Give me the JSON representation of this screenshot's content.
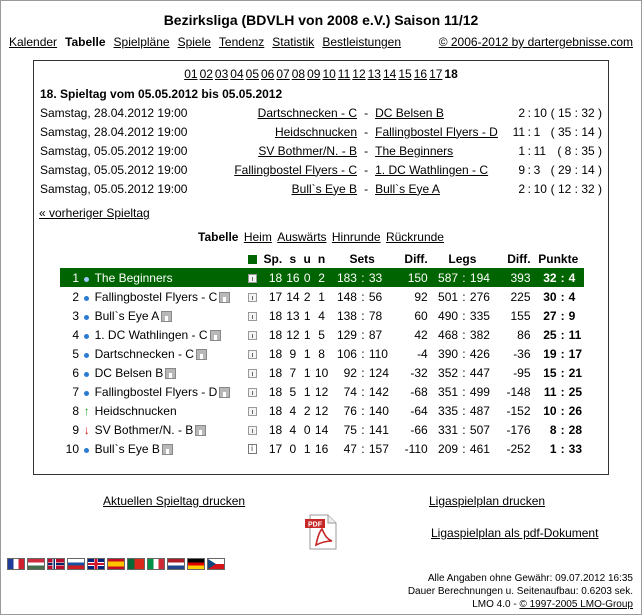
{
  "title": "Bezirksliga (BDVLH von 2008 e.V.) Saison 11/12",
  "nav": {
    "items": [
      "Kalender",
      "Tabelle",
      "Spielpläne",
      "Spiele",
      "Tendenz",
      "Statistik",
      "Bestleistungen"
    ],
    "current": "Tabelle",
    "copyright": "© 2006-2012 by dartergebnisse.com"
  },
  "matchdays": {
    "items": [
      "01",
      "02",
      "03",
      "04",
      "05",
      "06",
      "07",
      "08",
      "09",
      "10",
      "11",
      "12",
      "13",
      "14",
      "15",
      "16",
      "17",
      "18"
    ],
    "current": "18"
  },
  "spieltag_header": "18. Spieltag vom 05.05.2012 bis 05.05.2012",
  "matches": [
    {
      "date": "Samstag, 28.04.2012 19:00",
      "home": "Dartschnecken - C",
      "sep": "-",
      "away": "DC Belsen B",
      "score_home": "2",
      "colon": ":",
      "score_away": "10",
      "legs": "( 15 : 32 )"
    },
    {
      "date": "Samstag, 28.04.2012 19:00",
      "home": "Heidschnucken",
      "sep": "-",
      "away": "Fallingbostel Flyers - D",
      "score_home": "11",
      "colon": ":",
      "score_away": "1",
      "legs": "( 35 : 14 )"
    },
    {
      "date": "Samstag, 05.05.2012 19:00",
      "home": "SV Bothmer/N. - B",
      "sep": "-",
      "away": "The Beginners",
      "score_home": "1",
      "colon": ":",
      "score_away": "11",
      "legs": "( 8 : 35 )"
    },
    {
      "date": "Samstag, 05.05.2012 19:00",
      "home": "Fallingbostel Flyers - C",
      "sep": "-",
      "away": "1. DC Wathlingen - C",
      "score_home": "9",
      "colon": ":",
      "score_away": "3",
      "legs": "( 29 : 14 )"
    },
    {
      "date": "Samstag, 05.05.2012 19:00",
      "home": "Bull`s Eye B",
      "sep": "-",
      "away": "Bull`s Eye A",
      "score_home": "2",
      "colon": ":",
      "score_away": "10",
      "legs": "( 12 : 32 )"
    }
  ],
  "prev_link": "« vorheriger Spieltag",
  "table_tabs": {
    "label": "Tabelle",
    "items": [
      "Heim",
      "Auswärts",
      "Hinrunde",
      "Rückrunde"
    ]
  },
  "standings_header": {
    "sp": "Sp.",
    "s": "s",
    "u": "u",
    "n": "n",
    "sets": "Sets",
    "diff1": "Diff.",
    "legs": "Legs",
    "diff2": "Diff.",
    "punkte": "Punkte"
  },
  "standings": [
    {
      "rank": "1",
      "trend": "dot",
      "team": "The Beginners",
      "sp": "18",
      "s": "16",
      "u": "0",
      "n": "2",
      "sets_a": "183",
      "sets_b": "33",
      "diff1": "150",
      "legs_a": "587",
      "legs_b": "194",
      "diff2": "393",
      "pts_a": "32",
      "pts_b": "4"
    },
    {
      "rank": "2",
      "trend": "dot",
      "team": "Fallingbostel Flyers - C",
      "sp": "17",
      "s": "14",
      "u": "2",
      "n": "1",
      "sets_a": "148",
      "sets_b": "56",
      "diff1": "92",
      "legs_a": "501",
      "legs_b": "276",
      "diff2": "225",
      "pts_a": "30",
      "pts_b": "4"
    },
    {
      "rank": "3",
      "trend": "dot",
      "team": "Bull`s Eye A",
      "sp": "18",
      "s": "13",
      "u": "1",
      "n": "4",
      "sets_a": "138",
      "sets_b": "78",
      "diff1": "60",
      "legs_a": "490",
      "legs_b": "335",
      "diff2": "155",
      "pts_a": "27",
      "pts_b": "9"
    },
    {
      "rank": "4",
      "trend": "dot",
      "team": "1. DC Wathlingen - C",
      "sp": "18",
      "s": "12",
      "u": "1",
      "n": "5",
      "sets_a": "129",
      "sets_b": "87",
      "diff1": "42",
      "legs_a": "468",
      "legs_b": "382",
      "diff2": "86",
      "pts_a": "25",
      "pts_b": "11"
    },
    {
      "rank": "5",
      "trend": "dot",
      "team": "Dartschnecken - C",
      "sp": "18",
      "s": "9",
      "u": "1",
      "n": "8",
      "sets_a": "106",
      "sets_b": "110",
      "diff1": "-4",
      "legs_a": "390",
      "legs_b": "426",
      "diff2": "-36",
      "pts_a": "19",
      "pts_b": "17"
    },
    {
      "rank": "6",
      "trend": "dot",
      "team": "DC Belsen B",
      "sp": "18",
      "s": "7",
      "u": "1",
      "n": "10",
      "sets_a": "92",
      "sets_b": "124",
      "diff1": "-32",
      "legs_a": "352",
      "legs_b": "447",
      "diff2": "-95",
      "pts_a": "15",
      "pts_b": "21"
    },
    {
      "rank": "7",
      "trend": "dot",
      "team": "Fallingbostel Flyers - D",
      "sp": "18",
      "s": "5",
      "u": "1",
      "n": "12",
      "sets_a": "74",
      "sets_b": "142",
      "diff1": "-68",
      "legs_a": "351",
      "legs_b": "499",
      "diff2": "-148",
      "pts_a": "11",
      "pts_b": "25"
    },
    {
      "rank": "8",
      "trend": "up",
      "team": "Heidschnucken",
      "sp": "18",
      "s": "4",
      "u": "2",
      "n": "12",
      "sets_a": "76",
      "sets_b": "140",
      "diff1": "-64",
      "legs_a": "335",
      "legs_b": "487",
      "diff2": "-152",
      "pts_a": "10",
      "pts_b": "26"
    },
    {
      "rank": "9",
      "trend": "down",
      "team": "SV Bothmer/N. - B",
      "sp": "18",
      "s": "4",
      "u": "0",
      "n": "14",
      "sets_a": "75",
      "sets_b": "141",
      "diff1": "-66",
      "legs_a": "331",
      "legs_b": "507",
      "diff2": "-176",
      "pts_a": "8",
      "pts_b": "28"
    },
    {
      "rank": "10",
      "trend": "dot",
      "team": "Bull`s Eye B",
      "sp": "17",
      "s": "0",
      "u": "1",
      "n": "16",
      "sets_a": "47",
      "sets_b": "157",
      "diff1": "-110",
      "legs_a": "209",
      "legs_b": "461",
      "diff2": "-252",
      "pts_a": "1",
      "pts_b": "33"
    }
  ],
  "print_current": "Aktuellen Spieltag drucken",
  "print_plan": "Ligaspielplan drucken",
  "pdf_plan": "Ligaspielplan als pdf-Dokument",
  "pdf_icon_label": "PDF",
  "footer": {
    "line1": "Alle Angaben ohne Gewähr: 09.07.2012 16:35",
    "line2": "Dauer Berechnungen u. Seitenaufbau: 0.6203 sek.",
    "line3_prefix": "LMO 4.0 - ",
    "line3_link": "© 1997-2005 LMO-Group"
  },
  "flags": [
    "france-flag",
    "hungary-flag",
    "norway-flag",
    "slovenia-flag",
    "uk-flag",
    "spain-flag",
    "portugal-flag",
    "italy-flag",
    "netherlands-flag",
    "germany-flag",
    "czech-flag"
  ]
}
